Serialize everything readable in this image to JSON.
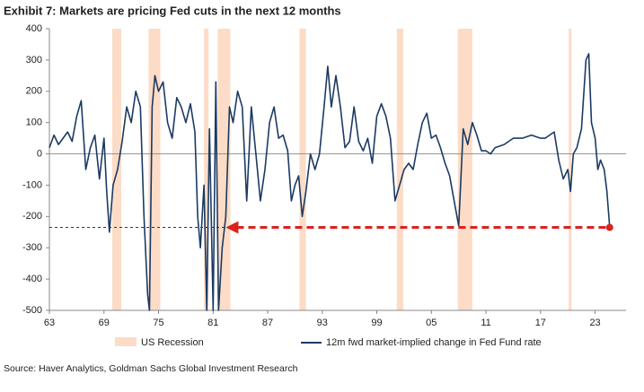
{
  "chart_data": {
    "type": "line",
    "title": "Exhibit 7: Markets are pricing Fed cuts in the next 12 months",
    "source": "Source: Haver Analytics, Goldman Sachs Global Investment Research",
    "xlim": [
      1963,
      2026.4
    ],
    "ylim": [
      -500,
      400
    ],
    "yticks": [
      -500,
      -400,
      -300,
      -200,
      -100,
      0,
      100,
      200,
      300,
      400
    ],
    "xticks": [
      {
        "value": 1963,
        "label": "63"
      },
      {
        "value": 1969,
        "label": "69"
      },
      {
        "value": 1975,
        "label": "75"
      },
      {
        "value": 1981,
        "label": "81"
      },
      {
        "value": 1987,
        "label": "87"
      },
      {
        "value": 1993,
        "label": "93"
      },
      {
        "value": 1999,
        "label": "99"
      },
      {
        "value": 2005,
        "label": "05"
      },
      {
        "value": 2011,
        "label": "11"
      },
      {
        "value": 2017,
        "label": "17"
      },
      {
        "value": 2023,
        "label": "23"
      }
    ],
    "recessions": {
      "name": "US Recession",
      "color": "#fcdcc6",
      "periods": [
        [
          1969.9,
          1970.9
        ],
        [
          1973.9,
          1975.2
        ],
        [
          1980.0,
          1980.5
        ],
        [
          1981.5,
          1982.9
        ],
        [
          1990.5,
          1991.2
        ],
        [
          2001.2,
          2001.9
        ],
        [
          2007.9,
          2009.5
        ],
        [
          2020.1,
          2020.4
        ]
      ]
    },
    "annotation": {
      "y": -235,
      "x_start": 1963,
      "x_arrow_tip": 1982.4,
      "x_end": 2024.6,
      "color": "#d9231f",
      "line_color": "#1f3864"
    },
    "series": [
      {
        "name": "12m fwd market-implied change in Fed Fund rate",
        "color": "#1b3a63",
        "x": [
          1963,
          1963.5,
          1964,
          1964.5,
          1965,
          1965.5,
          1966,
          1966.5,
          1967,
          1967.5,
          1968,
          1968.5,
          1969,
          1969.3,
          1969.6,
          1970,
          1970.5,
          1971,
          1971.5,
          1972,
          1972.5,
          1973,
          1973.4,
          1973.8,
          1974,
          1974.3,
          1974.6,
          1975,
          1975.5,
          1976,
          1976.5,
          1977,
          1977.5,
          1978,
          1978.5,
          1979,
          1979.3,
          1979.6,
          1980,
          1980.3,
          1980.6,
          1981,
          1981.3,
          1981.6,
          1982,
          1982.4,
          1982.8,
          1983.2,
          1983.7,
          1984.2,
          1984.7,
          1985.2,
          1985.7,
          1986.2,
          1986.7,
          1987.2,
          1987.7,
          1988.2,
          1988.7,
          1989.2,
          1989.6,
          1990,
          1990.4,
          1990.8,
          1991.2,
          1991.7,
          1992.2,
          1992.7,
          1993.2,
          1993.6,
          1994,
          1994.5,
          1995,
          1995.5,
          1996,
          1996.5,
          1997,
          1997.5,
          1998,
          1998.5,
          1999,
          1999.5,
          2000,
          2000.5,
          2001,
          2001.5,
          2002,
          2002.5,
          2003,
          2003.5,
          2004,
          2004.5,
          2005,
          2005.5,
          2006,
          2006.5,
          2007,
          2007.5,
          2008,
          2008.5,
          2009,
          2009.5,
          2010,
          2010.5,
          2011,
          2011.5,
          2012,
          2013,
          2014,
          2015,
          2016,
          2017,
          2017.5,
          2018,
          2018.5,
          2019,
          2019.5,
          2020,
          2020.3,
          2020.6,
          2021,
          2021.5,
          2022,
          2022.3,
          2022.6,
          2023,
          2023.3,
          2023.6,
          2024,
          2024.3,
          2024.6
        ],
        "values": [
          20,
          60,
          30,
          50,
          70,
          40,
          120,
          170,
          -50,
          20,
          60,
          -80,
          50,
          -120,
          -250,
          -100,
          -50,
          40,
          150,
          100,
          200,
          150,
          -200,
          -450,
          -500,
          150,
          250,
          200,
          230,
          100,
          50,
          180,
          150,
          100,
          160,
          70,
          -200,
          -300,
          -100,
          -500,
          80,
          -500,
          230,
          -500,
          -300,
          -200,
          150,
          100,
          200,
          150,
          -150,
          150,
          0,
          -150,
          -50,
          100,
          150,
          50,
          60,
          10,
          -150,
          -100,
          -70,
          -200,
          -120,
          0,
          -50,
          0,
          150,
          280,
          150,
          250,
          150,
          20,
          40,
          150,
          40,
          10,
          50,
          -30,
          120,
          160,
          120,
          50,
          -150,
          -100,
          -50,
          -30,
          -50,
          30,
          100,
          130,
          50,
          60,
          20,
          -30,
          -70,
          -150,
          -230,
          80,
          30,
          100,
          60,
          10,
          10,
          0,
          20,
          30,
          50,
          50,
          60,
          50,
          50,
          60,
          70,
          -20,
          -80,
          -50,
          -120,
          0,
          20,
          80,
          300,
          320,
          100,
          50,
          -50,
          -20,
          -50,
          -120,
          -235
        ]
      }
    ]
  }
}
